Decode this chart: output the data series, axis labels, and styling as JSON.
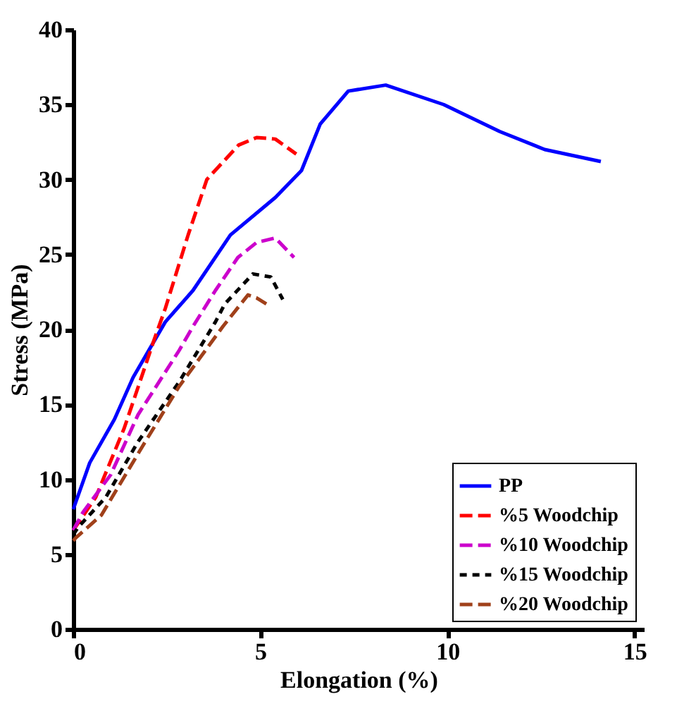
{
  "chart_data": {
    "type": "line",
    "xlabel": "Elongation (%)",
    "ylabel": "Stress (MPa)",
    "xlim": [
      0,
      15.25
    ],
    "xticks": [
      0,
      5,
      10,
      15
    ],
    "ylim": [
      0,
      40
    ],
    "yticks": [
      0,
      5,
      10,
      15,
      20,
      25,
      30,
      35,
      40
    ],
    "grid": false,
    "legend": "bottom right",
    "marker": "none",
    "series": [
      {
        "name": "PP",
        "color": "#0000ff",
        "line_style": "solid",
        "x": [
          0,
          0.44,
          1.1,
          1.6,
          2.46,
          3.2,
          4.2,
          5.4,
          6.1,
          6.6,
          7.35,
          8.35,
          9.9,
          11.4,
          12.6,
          14.1
        ],
        "values": [
          8.0,
          11.1,
          14,
          16.8,
          20.5,
          22.6,
          26.3,
          28.8,
          30.6,
          33.7,
          35.9,
          36.3,
          35.0,
          33.2,
          32.0,
          31.2
        ]
      },
      {
        "name": "%5 Woodchip",
        "color": "#ff0000",
        "line_style": "dashed",
        "x": [
          0,
          0.6,
          1.36,
          2.16,
          2.46,
          3.07,
          3.57,
          4.42,
          4.9,
          5.4,
          5.96
        ],
        "values": [
          6.6,
          8.8,
          13.4,
          19.3,
          21.4,
          26.3,
          30.0,
          32.3,
          32.8,
          32.7,
          31.7
        ]
      },
      {
        "name": "%10 Woodchip",
        "color": "#cc00cc",
        "line_style": "dashed",
        "x": [
          0,
          0.26,
          1.0,
          1.73,
          2.83,
          3.2,
          3.8,
          4.4,
          4.9,
          5.4,
          5.9
        ],
        "values": [
          6.6,
          7.8,
          10.3,
          14.3,
          18.6,
          20.2,
          22.6,
          24.8,
          25.8,
          26.1,
          24.8
        ]
      },
      {
        "name": "%15 Woodchip",
        "color": "#000000",
        "line_style": "dotted",
        "x": [
          0,
          0.13,
          0.87,
          1.73,
          2.83,
          3.8,
          4.05,
          4.8,
          5.28,
          5.6
        ],
        "values": [
          6.3,
          6.8,
          8.8,
          12.5,
          16.5,
          20.5,
          21.7,
          23.7,
          23.5,
          22.0
        ]
      },
      {
        "name": "%20 Woodchip",
        "color": "#a0401a",
        "line_style": "dashed",
        "x": [
          0,
          0.07,
          0.75,
          1.85,
          2.83,
          4.0,
          4.67,
          4.9,
          5.16
        ],
        "values": [
          5.9,
          6.1,
          7.6,
          12.2,
          16.2,
          20.2,
          22.3,
          22.1,
          21.7
        ]
      }
    ]
  }
}
